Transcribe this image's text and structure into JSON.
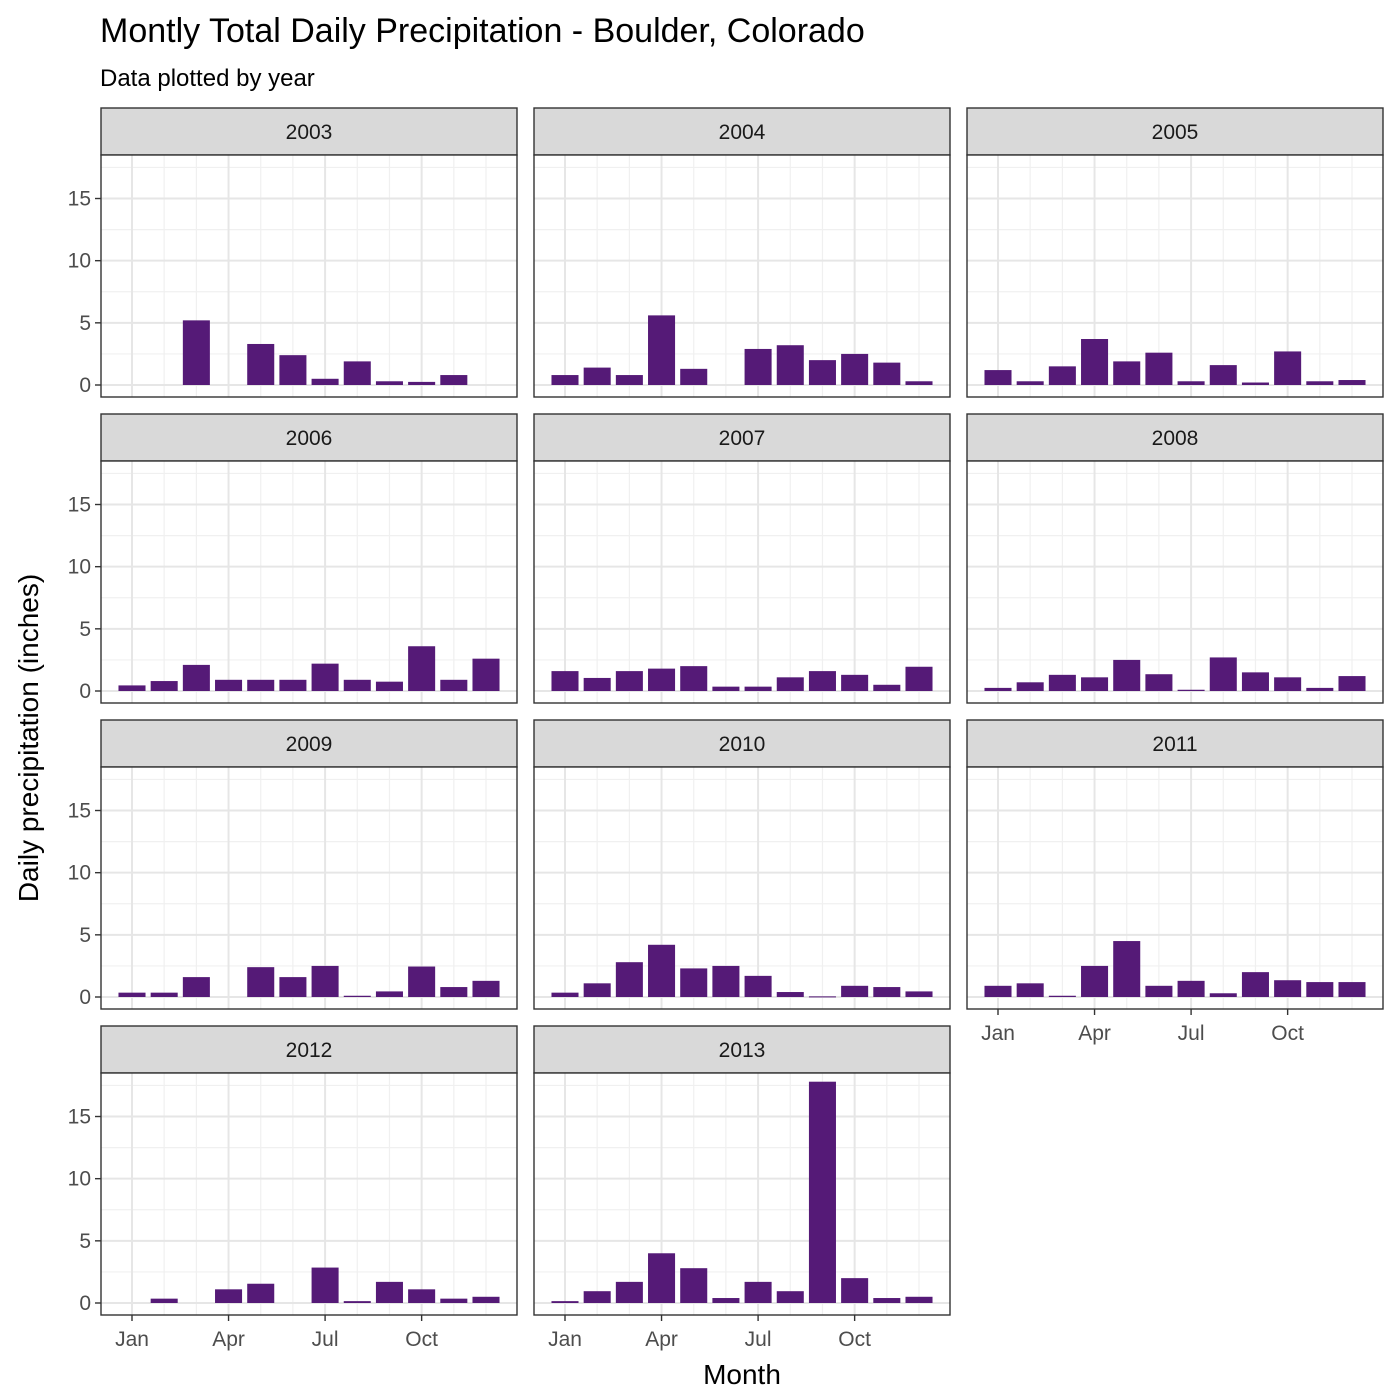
{
  "chart_data": {
    "type": "bar",
    "title": "Montly Total Daily Precipitation - Boulder, Colorado",
    "subtitle": "Data plotted by year",
    "xlabel": "Month",
    "ylabel": "Daily precipitation (inches)",
    "ylim": [
      0,
      18.5
    ],
    "y_ticks": [
      0,
      5,
      10,
      15
    ],
    "x_tick_labels": [
      "Jan",
      "Apr",
      "Jul",
      "Oct"
    ],
    "x_tick_months": [
      1,
      4,
      7,
      10
    ],
    "categories": [
      "Jan",
      "Feb",
      "Mar",
      "Apr",
      "May",
      "Jun",
      "Jul",
      "Aug",
      "Sep",
      "Oct",
      "Nov",
      "Dec"
    ],
    "grid": true,
    "bar_color": "#551A77",
    "facets": [
      {
        "year": "2003",
        "values": [
          0,
          0,
          5.2,
          0,
          3.3,
          2.4,
          0.5,
          1.9,
          0.3,
          0.25,
          0.8,
          0
        ]
      },
      {
        "year": "2004",
        "values": [
          0.8,
          1.4,
          0.8,
          5.6,
          1.3,
          0,
          2.9,
          3.2,
          2.0,
          2.5,
          1.8,
          0.3
        ]
      },
      {
        "year": "2005",
        "values": [
          1.2,
          0.3,
          1.5,
          3.7,
          1.9,
          2.6,
          0.3,
          1.6,
          0.2,
          2.7,
          0.3,
          0.4
        ]
      },
      {
        "year": "2006",
        "values": [
          0.45,
          0.8,
          2.1,
          0.9,
          0.9,
          0.9,
          2.2,
          0.9,
          0.75,
          3.6,
          0.9,
          2.6
        ]
      },
      {
        "year": "2007",
        "values": [
          1.6,
          1.05,
          1.6,
          1.8,
          2.0,
          0.35,
          0.35,
          1.1,
          1.6,
          1.3,
          0.5,
          1.95
        ]
      },
      {
        "year": "2008",
        "values": [
          0.25,
          0.7,
          1.3,
          1.1,
          2.5,
          1.35,
          0.1,
          2.7,
          1.5,
          1.1,
          0.25,
          1.2
        ]
      },
      {
        "year": "2009",
        "values": [
          0.35,
          0.35,
          1.6,
          0,
          2.4,
          1.6,
          2.5,
          0.1,
          0.45,
          2.45,
          0.8,
          1.3
        ]
      },
      {
        "year": "2010",
        "values": [
          0.35,
          1.1,
          2.8,
          4.2,
          2.3,
          2.5,
          1.7,
          0.4,
          0.05,
          0.9,
          0.8,
          0.45
        ]
      },
      {
        "year": "2011",
        "values": [
          0.9,
          1.1,
          0.1,
          2.5,
          4.5,
          0.9,
          1.3,
          0.3,
          2.0,
          1.35,
          1.2,
          1.2
        ]
      },
      {
        "year": "2012",
        "values": [
          0,
          0.35,
          0,
          1.1,
          1.55,
          0,
          2.85,
          0.15,
          1.7,
          1.1,
          0.35,
          0.5
        ]
      },
      {
        "year": "2013",
        "values": [
          0.15,
          0.95,
          1.7,
          4.0,
          2.8,
          0.4,
          1.7,
          0.95,
          17.8,
          2.0,
          0.4,
          0.5
        ]
      }
    ]
  }
}
